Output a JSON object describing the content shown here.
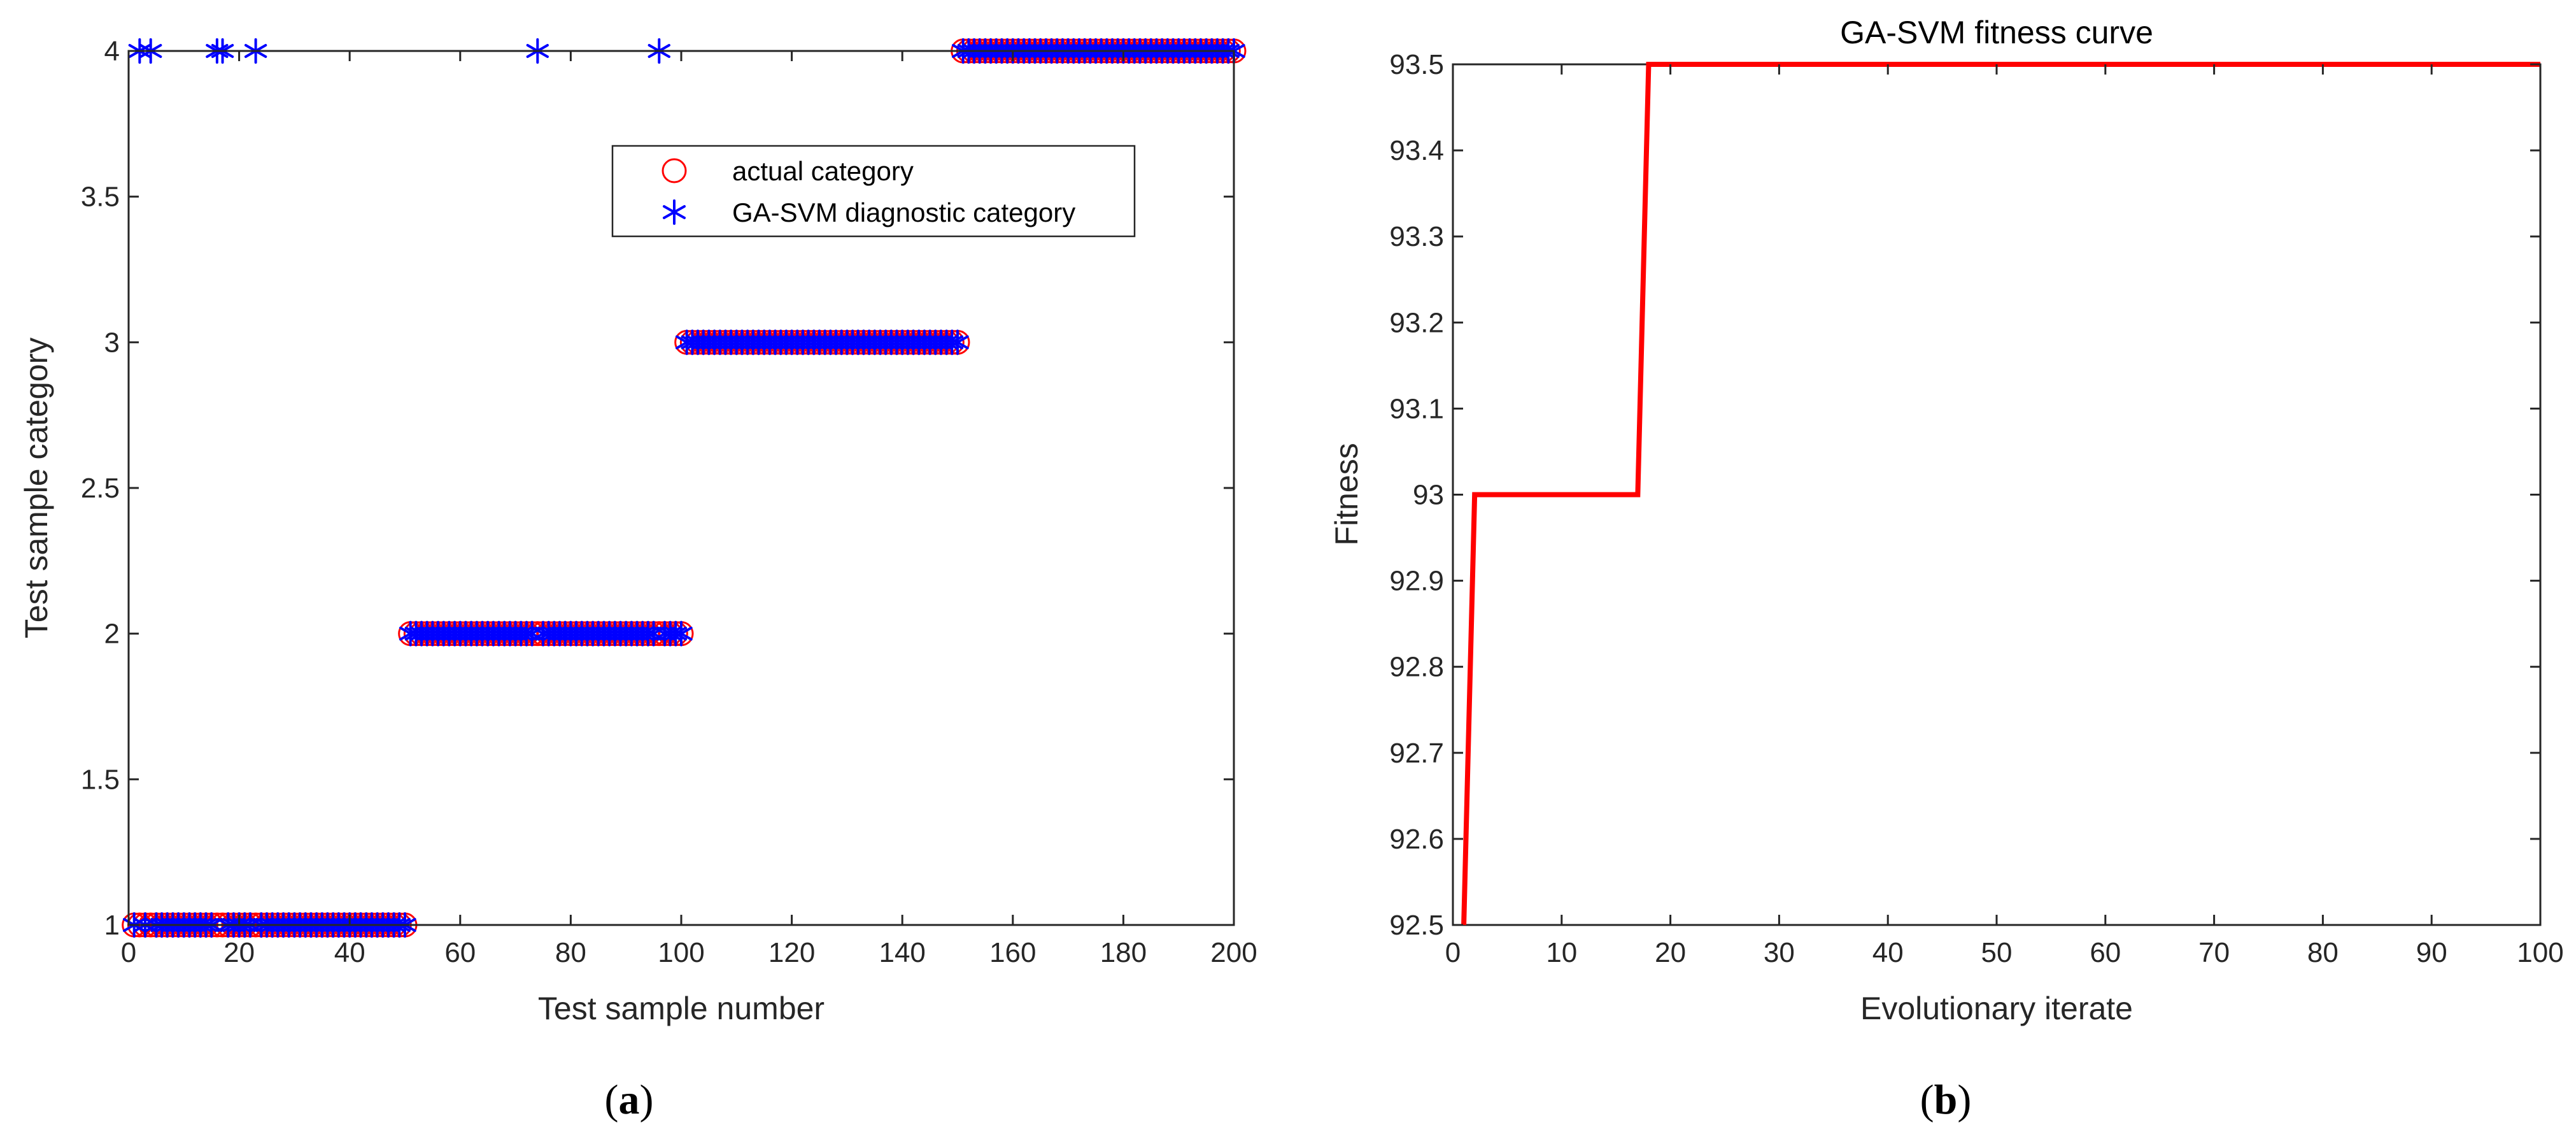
{
  "colors": {
    "actual": "#ff0000",
    "predicted": "#0000ff",
    "fitness_line": "#ff0000",
    "axis": "#262626"
  },
  "panels": {
    "a": {
      "label_open": "(",
      "label_letter": "a",
      "label_close": ")"
    },
    "b": {
      "label_open": "(",
      "label_letter": "b",
      "label_close": ")"
    }
  },
  "chart_data": [
    {
      "id": "a",
      "type": "scatter",
      "title": "",
      "xlabel": "Test sample number",
      "ylabel": "Test sample category",
      "xlim": [
        0,
        200
      ],
      "ylim": [
        1,
        4
      ],
      "xticks": [
        0,
        20,
        40,
        60,
        80,
        100,
        120,
        140,
        160,
        180,
        200
      ],
      "xtick_labels": [
        "0",
        "20",
        "40",
        "60",
        "80",
        "100",
        "120",
        "140",
        "160",
        "180",
        "200"
      ],
      "yticks": [
        1,
        1.5,
        2,
        2.5,
        3,
        3.5,
        4
      ],
      "ytick_labels": [
        "1",
        "1.5",
        "2",
        "2.5",
        "3",
        "3.5",
        "4"
      ],
      "grid": false,
      "legend_position": "upper-right",
      "series": [
        {
          "name": "actual category",
          "marker": "circle",
          "segments": [
            {
              "from": 1,
              "to": 50,
              "category": 1
            },
            {
              "from": 51,
              "to": 100,
              "category": 2
            },
            {
              "from": 101,
              "to": 150,
              "category": 3
            },
            {
              "from": 151,
              "to": 200,
              "category": 4
            }
          ]
        },
        {
          "name": "GA-SVM diagnostic category",
          "marker": "asterisk",
          "segments": [
            {
              "from": 1,
              "to": 50,
              "category": 1
            },
            {
              "from": 51,
              "to": 100,
              "category": 2
            },
            {
              "from": 101,
              "to": 150,
              "category": 3
            },
            {
              "from": 151,
              "to": 200,
              "category": 4
            }
          ],
          "misclassified": [
            {
              "x": 2,
              "y": 4
            },
            {
              "x": 4,
              "y": 4
            },
            {
              "x": 16,
              "y": 4
            },
            {
              "x": 17,
              "y": 4
            },
            {
              "x": 23,
              "y": 4
            },
            {
              "x": 74,
              "y": 4
            },
            {
              "x": 96,
              "y": 4
            }
          ]
        }
      ]
    },
    {
      "id": "b",
      "type": "line",
      "title": "GA-SVM fitness curve",
      "xlabel": "Evolutionary iterate",
      "ylabel": "Fitness",
      "xlim": [
        0,
        100
      ],
      "ylim": [
        92.5,
        93.5
      ],
      "xticks": [
        0,
        10,
        20,
        30,
        40,
        50,
        60,
        70,
        80,
        90,
        100
      ],
      "xtick_labels": [
        "0",
        "10",
        "20",
        "30",
        "40",
        "50",
        "60",
        "70",
        "80",
        "90",
        "100"
      ],
      "yticks": [
        92.5,
        92.6,
        92.7,
        92.8,
        92.9,
        93,
        93.1,
        93.2,
        93.3,
        93.4,
        93.5
      ],
      "ytick_labels": [
        "92.5",
        "92.6",
        "92.7",
        "92.8",
        "92.9",
        "93",
        "93.1",
        "93.2",
        "93.3",
        "93.4",
        "93.5"
      ],
      "grid": false,
      "series": [
        {
          "x": [
            1,
            2,
            17,
            18,
            100
          ],
          "y": [
            92.5,
            93,
            93,
            93.5,
            93.5
          ]
        }
      ]
    }
  ]
}
